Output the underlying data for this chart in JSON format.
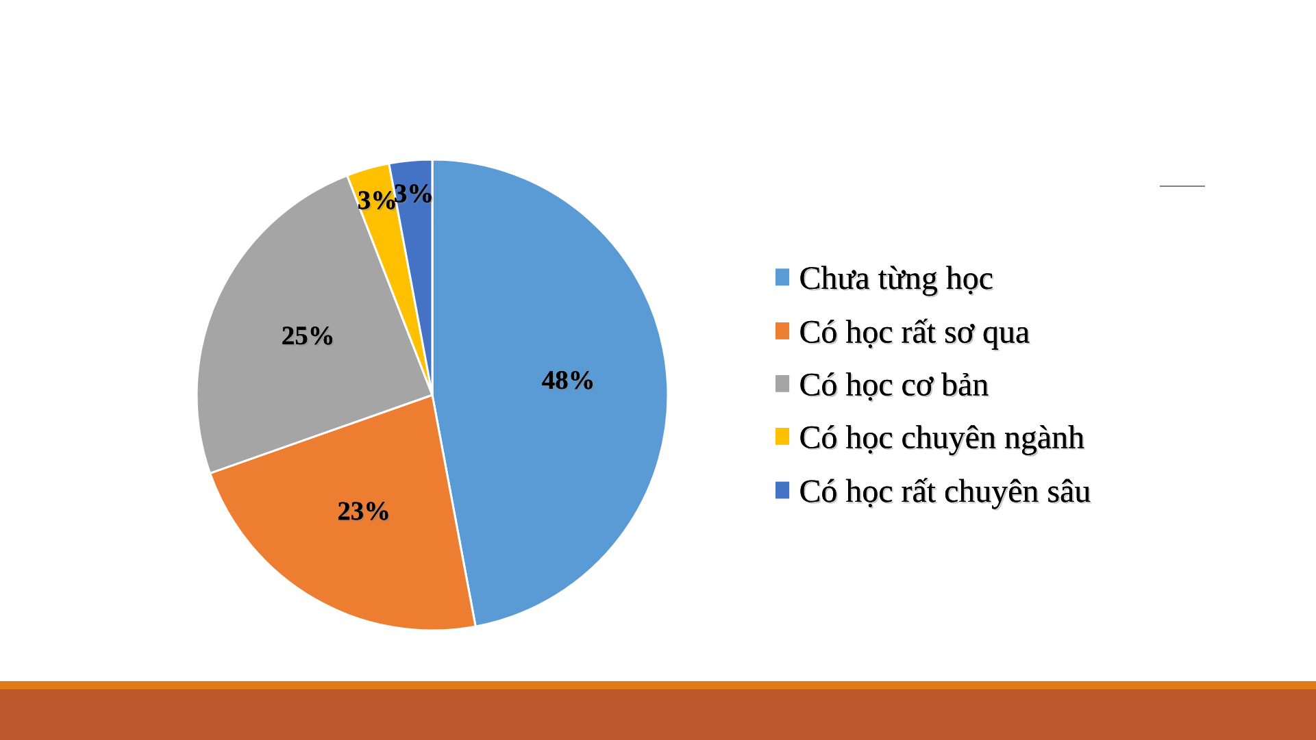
{
  "chart_data": {
    "type": "pie",
    "categories": [
      "Chưa từng học",
      "Có học rất sơ qua",
      "Có học cơ bản",
      "Có học chuyên ngành",
      "Có học rất chuyên sâu"
    ],
    "values": [
      48,
      23,
      25,
      3,
      3
    ],
    "colors": [
      "#5b9bd5",
      "#ed7d31",
      "#a5a5a5",
      "#ffc000",
      "#4472c4"
    ],
    "value_labels": [
      "48%",
      "23%",
      "25%",
      "3%",
      "3%"
    ],
    "legend": "right"
  }
}
